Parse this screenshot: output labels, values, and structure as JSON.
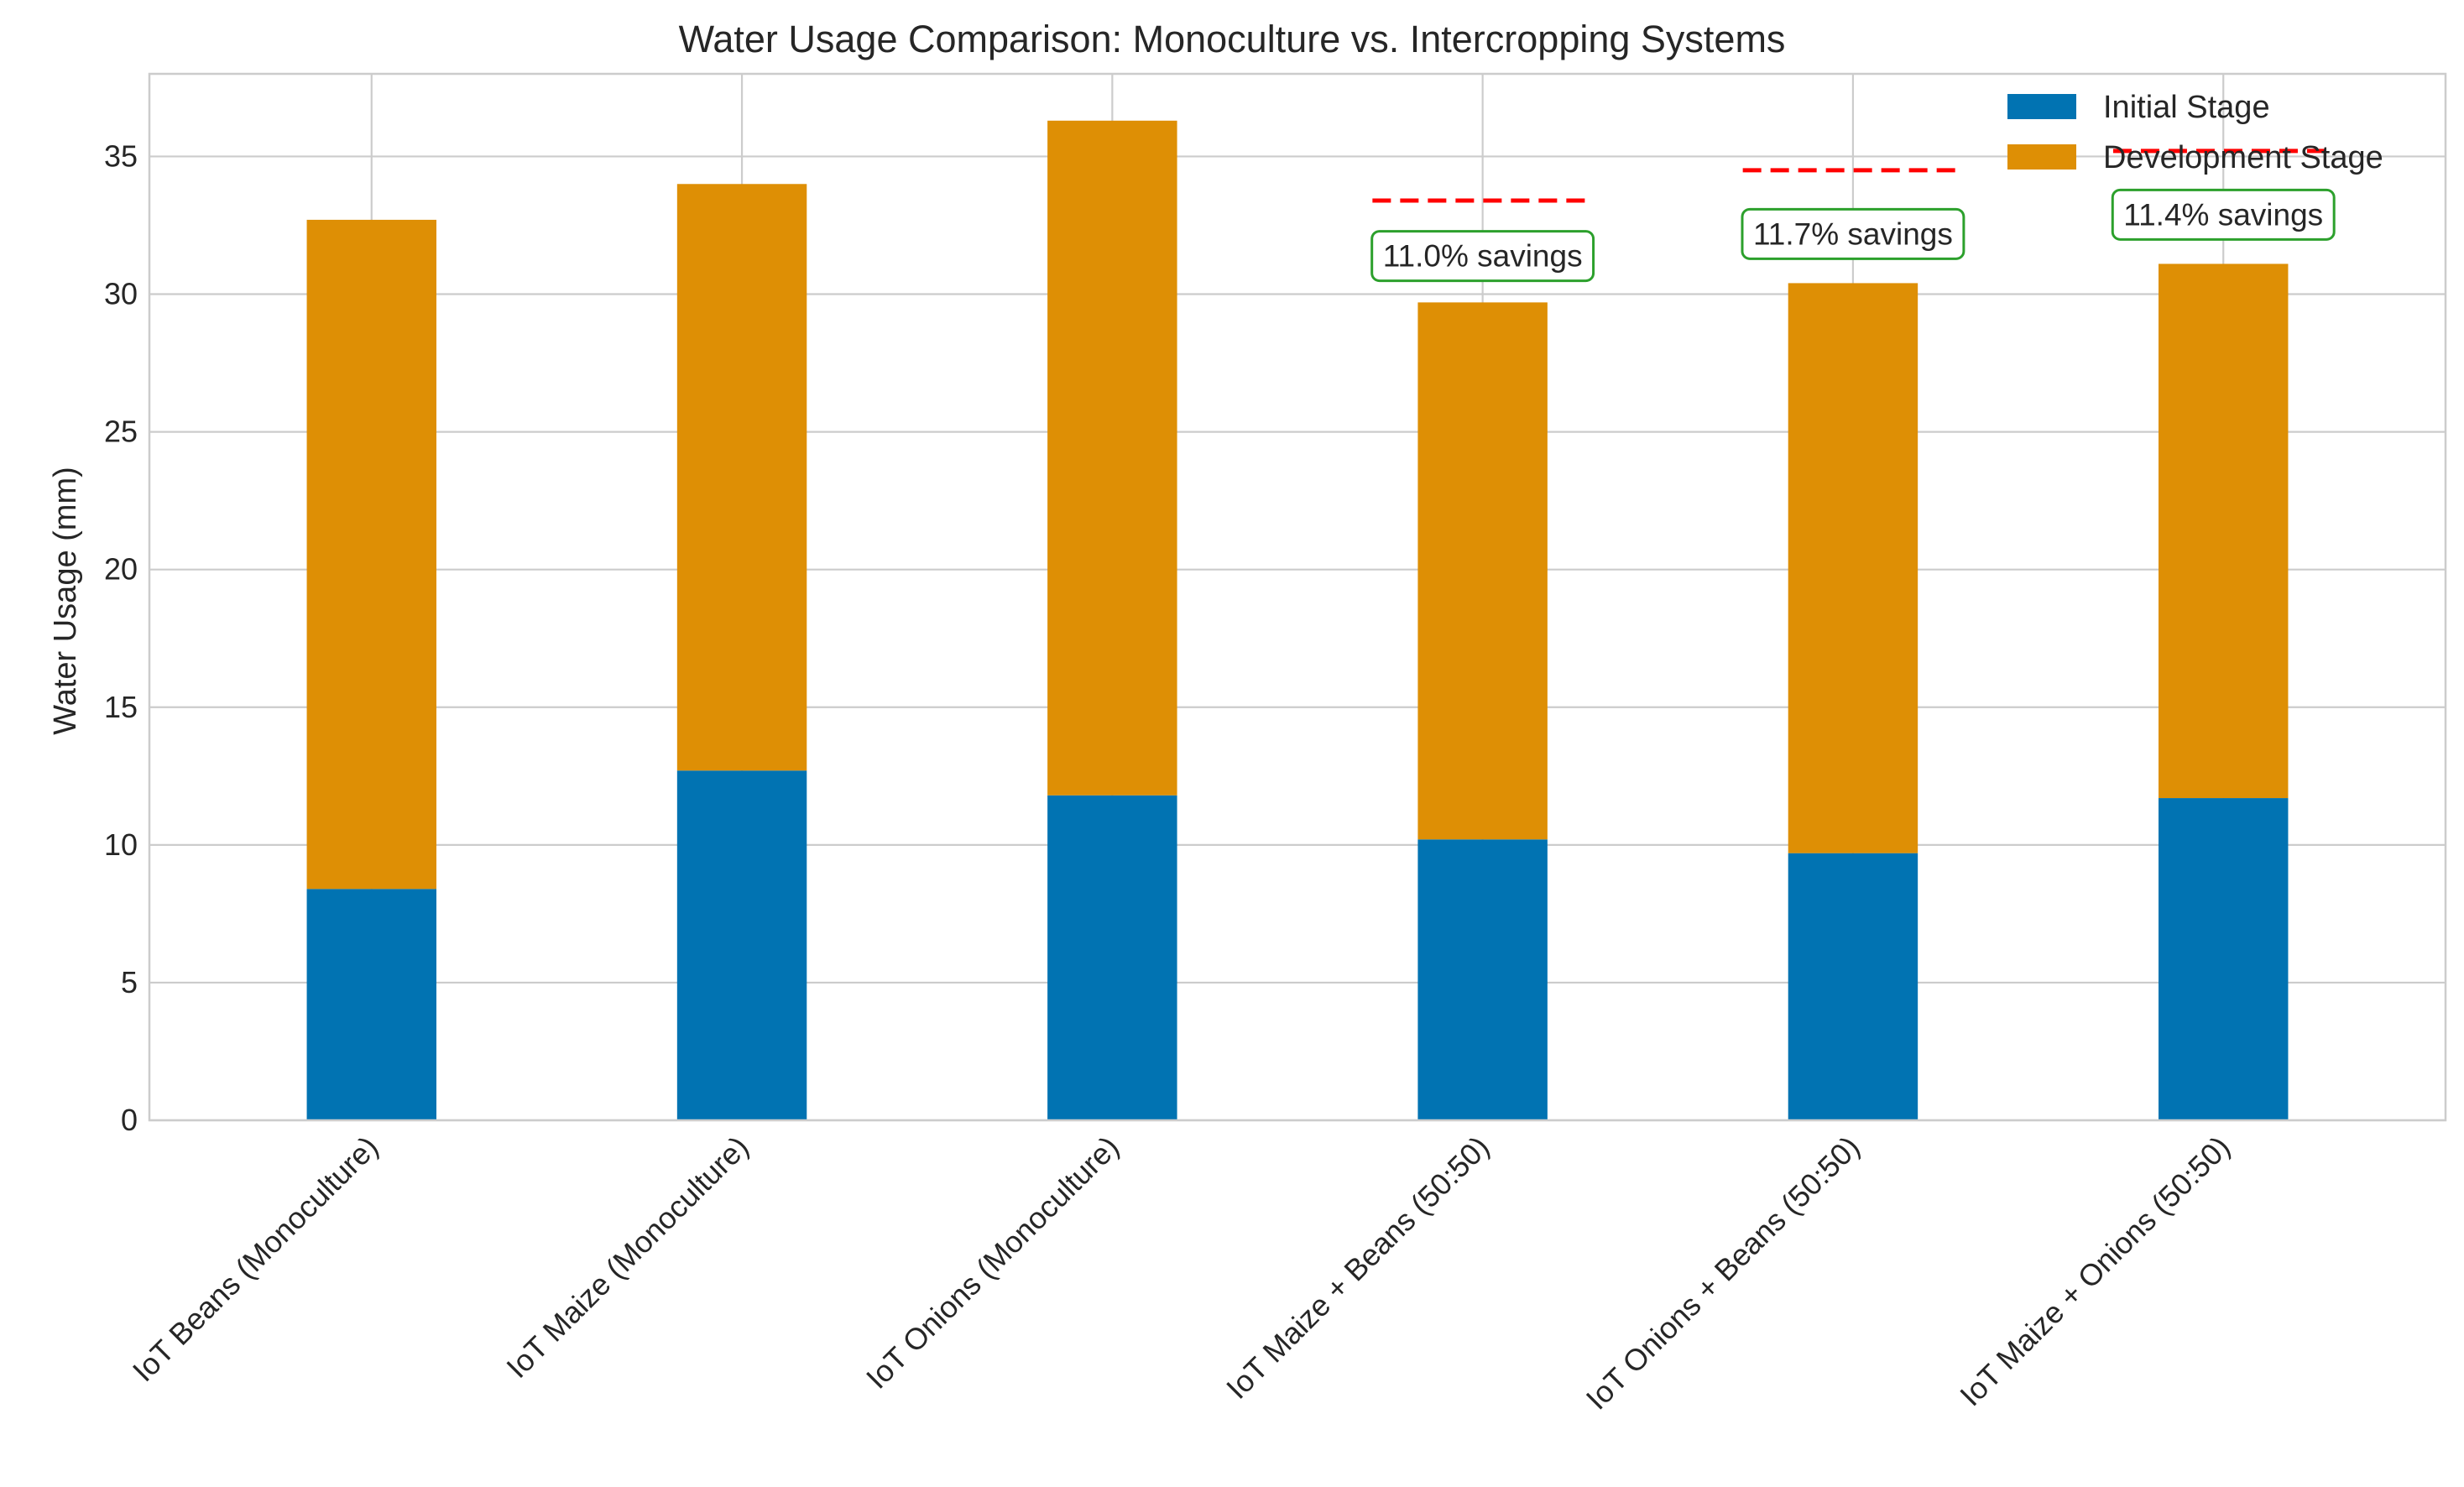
{
  "chart_data": {
    "type": "bar",
    "stacked": true,
    "title": "Water Usage Comparison: Monoculture vs. Intercropping Systems",
    "xlabel": "",
    "ylabel": "Water Usage (mm)",
    "ylim": [
      0,
      38
    ],
    "yticks": [
      0,
      5,
      10,
      15,
      20,
      25,
      30,
      35
    ],
    "grid": true,
    "legend_position": "top-right",
    "categories": [
      "IoT Beans (Monoculture)",
      "IoT Maize (Monoculture)",
      "IoT Onions (Monoculture)",
      "IoT Maize + Beans (50:50)",
      "IoT Onions + Beans (50:50)",
      "IoT Maize + Onions (50:50)"
    ],
    "series": [
      {
        "name": "Initial Stage",
        "color": "#0173b2",
        "values": [
          8.4,
          12.7,
          11.8,
          10.2,
          9.7,
          11.7
        ]
      },
      {
        "name": "Development Stage",
        "color": "#de8f05",
        "values": [
          24.3,
          21.3,
          24.5,
          19.5,
          20.7,
          19.4
        ]
      }
    ],
    "reference_lines": [
      {
        "category_index": 3,
        "value": 33.4,
        "color": "#ff0000",
        "style": "dashed"
      },
      {
        "category_index": 4,
        "value": 34.5,
        "color": "#ff0000",
        "style": "dashed"
      },
      {
        "category_index": 5,
        "value": 35.2,
        "color": "#ff0000",
        "style": "dashed"
      }
    ],
    "annotations": [
      {
        "category_index": 3,
        "text": "11.0% savings",
        "value": 31.4
      },
      {
        "category_index": 4,
        "text": "11.7% savings",
        "value": 32.2
      },
      {
        "category_index": 5,
        "text": "11.4% savings",
        "value": 32.9
      }
    ],
    "annotation_border_color": "#2ca02c"
  }
}
